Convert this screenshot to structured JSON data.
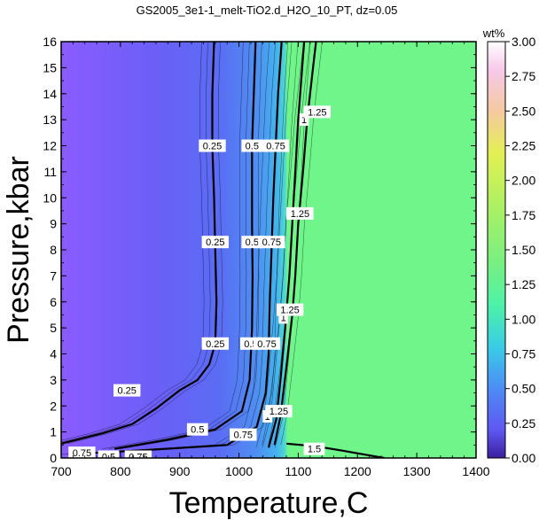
{
  "chart_data": {
    "type": "heatmap",
    "title": "GS2005_3e1-1_melt-TiO2.d_H2O_10_PT, dz=0.05",
    "xlabel": "Temperature,C",
    "ylabel": "Pressure,kbar",
    "xlim": [
      700,
      1400
    ],
    "ylim": [
      0,
      16
    ],
    "xticks": [
      700,
      800,
      900,
      1000,
      1100,
      1200,
      1300,
      1400
    ],
    "yticks": [
      0,
      1,
      2,
      3,
      4,
      5,
      6,
      7,
      8,
      9,
      10,
      11,
      12,
      13,
      14,
      15,
      16
    ],
    "colorbar": {
      "label": "wt%",
      "range": [
        0,
        3
      ],
      "ticks": [
        "0.00",
        "0.25",
        "0.50",
        "0.75",
        "1.00",
        "1.25",
        "1.50",
        "1.75",
        "2.00",
        "2.25",
        "2.50",
        "2.75",
        "3.00"
      ],
      "stops": [
        {
          "value": 0.0,
          "color": "#3a1f9e"
        },
        {
          "value": 0.2,
          "color": "#5f57f2"
        },
        {
          "value": 0.5,
          "color": "#4d8cf5"
        },
        {
          "value": 0.8,
          "color": "#39cde6"
        },
        {
          "value": 1.1,
          "color": "#4df2a8"
        },
        {
          "value": 1.4,
          "color": "#77f081"
        },
        {
          "value": 1.8,
          "color": "#aaf064"
        },
        {
          "value": 2.2,
          "color": "#e4f054"
        },
        {
          "value": 2.5,
          "color": "#f5c9a0"
        },
        {
          "value": 2.8,
          "color": "#f7c9ea"
        },
        {
          "value": 3.0,
          "color": "#ffffff"
        }
      ]
    },
    "background_color": "#6ff58a",
    "contours": [
      {
        "value": 0.25,
        "points": [
          [
            700,
            0.55
          ],
          [
            770,
            0.95
          ],
          [
            820,
            1.3
          ],
          [
            860,
            1.9
          ],
          [
            900,
            2.6
          ],
          [
            930,
            3.0
          ],
          [
            950,
            3.6
          ],
          [
            960,
            4.4
          ],
          [
            962,
            6
          ],
          [
            960,
            8
          ],
          [
            958,
            10
          ],
          [
            955,
            12
          ],
          [
            955,
            14
          ],
          [
            958,
            16
          ]
        ]
      },
      {
        "value": 0.5,
        "points": [
          [
            790,
            0.35
          ],
          [
            880,
            0.7
          ],
          [
            960,
            1.1
          ],
          [
            1005,
            1.8
          ],
          [
            1018,
            3.0
          ],
          [
            1022,
            5
          ],
          [
            1023,
            7
          ],
          [
            1022,
            9
          ],
          [
            1022,
            12
          ],
          [
            1025,
            14
          ],
          [
            1028,
            16
          ]
        ]
      },
      {
        "value": 0.75,
        "points": [
          [
            720,
            0.15
          ],
          [
            840,
            0.3
          ],
          [
            980,
            0.5
          ],
          [
            1030,
            1.2
          ],
          [
            1045,
            2.5
          ],
          [
            1050,
            4
          ],
          [
            1052,
            6
          ],
          [
            1055,
            8
          ],
          [
            1058,
            10
          ],
          [
            1062,
            12
          ],
          [
            1066,
            14
          ],
          [
            1072,
            16
          ]
        ]
      },
      {
        "value": 1.0,
        "points": [
          [
            1050,
            0.4
          ],
          [
            1063,
            1.5
          ],
          [
            1070,
            3
          ],
          [
            1078,
            5
          ],
          [
            1085,
            7
          ],
          [
            1090,
            9
          ],
          [
            1095,
            11
          ],
          [
            1100,
            13
          ],
          [
            1110,
            16
          ]
        ]
      },
      {
        "value": 1.25,
        "points": [
          [
            1060,
            0.5
          ],
          [
            1070,
            1.6
          ],
          [
            1080,
            3.5
          ],
          [
            1090,
            5.5
          ],
          [
            1095,
            7
          ],
          [
            1100,
            9
          ],
          [
            1108,
            11
          ],
          [
            1115,
            13
          ],
          [
            1125,
            15
          ],
          [
            1130,
            16
          ]
        ]
      },
      {
        "value": 1.5,
        "points": [
          [
            1080,
            0.55
          ],
          [
            1130,
            0.45
          ],
          [
            1170,
            0.3
          ],
          [
            1220,
            0.1
          ],
          [
            1245,
            0.0
          ]
        ]
      }
    ],
    "contour_labels": [
      {
        "text": "0.25",
        "x": 955,
        "y": 12.0
      },
      {
        "text": "0.25",
        "x": 960,
        "y": 8.3
      },
      {
        "text": "0.25",
        "x": 960,
        "y": 4.4
      },
      {
        "text": "0.25",
        "x": 811,
        "y": 2.6
      },
      {
        "text": "0.5",
        "x": 1022,
        "y": 12.0
      },
      {
        "text": "0.5",
        "x": 1022,
        "y": 8.3
      },
      {
        "text": "0.5",
        "x": 1020,
        "y": 4.4
      },
      {
        "text": "0.5",
        "x": 930,
        "y": 1.1
      },
      {
        "text": "0.5",
        "x": 780,
        "y": 0.05
      },
      {
        "text": "0.75",
        "x": 1062,
        "y": 12.0
      },
      {
        "text": "0.75",
        "x": 1055,
        "y": 8.3
      },
      {
        "text": "0.75",
        "x": 1047,
        "y": 4.4
      },
      {
        "text": "0.75",
        "x": 1007,
        "y": 0.9
      },
      {
        "text": "0.75",
        "x": 735,
        "y": 0.2
      },
      {
        "text": "0.75",
        "x": 830,
        "y": 0.05
      },
      {
        "text": "1",
        "x": 1110,
        "y": 13.0
      },
      {
        "text": "1",
        "x": 1088,
        "y": 9.4
      },
      {
        "text": "1",
        "x": 1075,
        "y": 5.4
      },
      {
        "text": "1",
        "x": 1048,
        "y": 1.6
      },
      {
        "text": "1.25",
        "x": 1132,
        "y": 13.3
      },
      {
        "text": "1.25",
        "x": 1103,
        "y": 9.4
      },
      {
        "text": "1.25",
        "x": 1086,
        "y": 5.7
      },
      {
        "text": "1.25",
        "x": 1067,
        "y": 1.8
      },
      {
        "text": "1.5",
        "x": 1127,
        "y": 0.35
      }
    ]
  }
}
